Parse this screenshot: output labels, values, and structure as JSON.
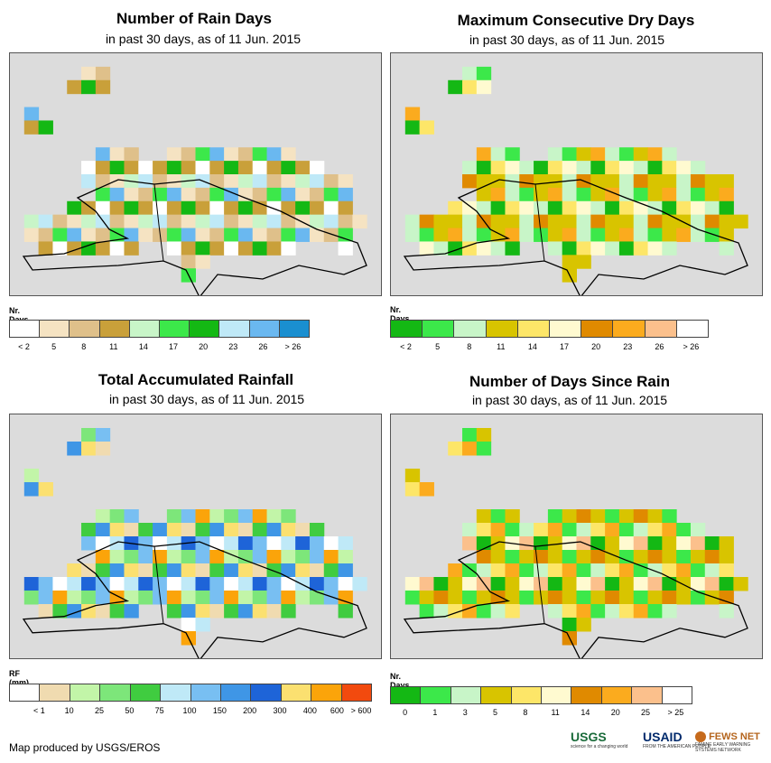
{
  "panels": [
    {
      "title": "Number of Rain Days",
      "subtitle": "in past 30 days, as of 11 Jun. 2015",
      "legend_title": "Nr. Days",
      "legend_colors": [
        "#ffffff",
        "#f5e3c2",
        "#dfc08a",
        "#c9a03a",
        "#c8f5c8",
        "#3ce84a",
        "#14b814",
        "#bfe9f7",
        "#6ab8f0",
        "#1a8fd0"
      ],
      "legend_labels": [
        "< 2",
        "5",
        "8",
        "11",
        "14",
        "17",
        "20",
        "23",
        "26",
        "> 26"
      ],
      "label_mode": "center"
    },
    {
      "title": "Maximum Consecutive Dry Days",
      "subtitle": "in past 30 days, as of 11 Jun. 2015",
      "legend_title": "Nr. Days",
      "legend_colors": [
        "#14b814",
        "#3ce84a",
        "#c8f5c8",
        "#d8c400",
        "#fde668",
        "#fffad0",
        "#e08a00",
        "#fbab1e",
        "#fbc08c",
        "#ffffff"
      ],
      "legend_labels": [
        "< 2",
        "5",
        "8",
        "11",
        "14",
        "17",
        "20",
        "23",
        "26",
        "> 26"
      ],
      "label_mode": "center"
    },
    {
      "title": "Total Accumulated Rainfall",
      "subtitle": "in past 30 days, as of 11 Jun. 2015",
      "legend_title": "RF (mm)",
      "legend_colors": [
        "#ffffff",
        "#f0dbb0",
        "#c2f5a8",
        "#7de67a",
        "#40cc40",
        "#bfe9f7",
        "#78bff2",
        "#3f96e6",
        "#1e64d8",
        "#fbe070",
        "#fba40a",
        "#f24a0e"
      ],
      "legend_labels": [
        "< 1",
        "10",
        "25",
        "50",
        "75",
        "100",
        "150",
        "200",
        "300",
        "400",
        "600",
        "> 600"
      ],
      "label_mode": "edge"
    },
    {
      "title": "Number of Days Since Rain",
      "subtitle": "in past 30 days, as of 11 Jun. 2015",
      "legend_title": "Nr. Days",
      "legend_colors": [
        "#14b814",
        "#3ce84a",
        "#c8f5c8",
        "#d8c400",
        "#fde668",
        "#fffad0",
        "#e08a00",
        "#fbab1e",
        "#fbc08c",
        "#ffffff"
      ],
      "legend_labels": [
        "0",
        "1",
        "3",
        "5",
        "8",
        "11",
        "14",
        "20",
        "25",
        "> 25"
      ],
      "label_mode": "center"
    }
  ],
  "footer": "Map produced by USGS/EROS",
  "logos": {
    "usgs": "USGS",
    "usgs_tag": "science for a changing world",
    "usaid": "USAID",
    "usaid_tag": "FROM THE AMERICAN PEOPLE",
    "fews": "FEWS NET",
    "fews_tag": "FAMINE EARLY WARNING SYSTEMS NETWORK"
  }
}
